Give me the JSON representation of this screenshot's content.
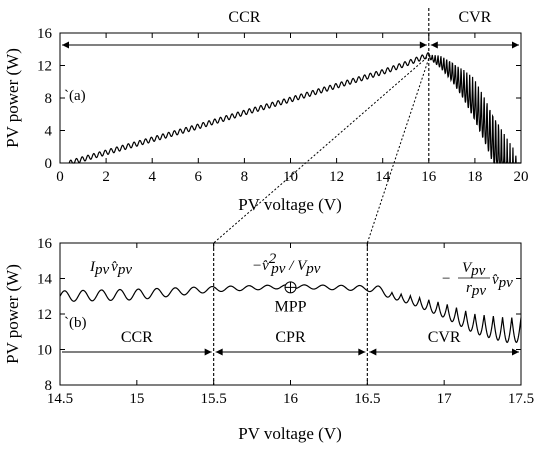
{
  "chart_data": [
    {
      "type": "line",
      "panel_label": "`(a)",
      "xlabel": "PV voltage (V)",
      "ylabel": "PV power (W)",
      "xlim": [
        0,
        20
      ],
      "ylim": [
        0,
        16
      ],
      "xticks": [
        "0",
        "2",
        "4",
        "6",
        "8",
        "10",
        "12",
        "14",
        "16",
        "18",
        "20"
      ],
      "yticks": [
        "0",
        "4",
        "8",
        "12",
        "16"
      ],
      "regions": [
        {
          "label": "CCR",
          "from": 0,
          "to": 16
        },
        {
          "label": "CVR",
          "from": 16,
          "to": 20
        }
      ],
      "boundary_x": 16,
      "series": [
        {
          "envelope_x": [
            0.4,
            2,
            4,
            6,
            8,
            10,
            12,
            14,
            15,
            16,
            16.5,
            17,
            17.5,
            18,
            18.5,
            19,
            19.5,
            19.8,
            20
          ],
          "envelope_y": [
            0,
            1.3,
            2.9,
            4.5,
            6.2,
            7.8,
            9.5,
            11.2,
            12.2,
            13.3,
            13.3,
            12.8,
            11.8,
            10.3,
            8.3,
            5.8,
            2.8,
            1.0,
            0
          ],
          "ripple_amplitude": 0.3,
          "ripple_period_v": 0.25
        }
      ],
      "grid": false
    },
    {
      "type": "line",
      "panel_label": "`(b)",
      "xlabel": "PV voltage (V)",
      "ylabel": "PV power (W)",
      "xlim": [
        14.5,
        17.5
      ],
      "ylim": [
        8,
        16
      ],
      "xticks": [
        "14.5",
        "15",
        "15.5",
        "16",
        "16.5",
        "17",
        "17.5"
      ],
      "yticks": [
        "8",
        "10",
        "12",
        "14",
        "16"
      ],
      "regions": [
        {
          "label": "CCR",
          "from": 14.5,
          "to": 15.5
        },
        {
          "label": "CPR",
          "from": 15.5,
          "to": 16.5
        },
        {
          "label": "CVR",
          "from": 16.5,
          "to": 17.5
        }
      ],
      "boundaries_x": [
        15.5,
        16.5
      ],
      "mpp": {
        "label": "MPP",
        "x": 16.0,
        "y": 13.5
      },
      "annotations": {
        "ccr": {
          "main": "I",
          "sub1": "pv",
          "main2": "v̂",
          "sub2": "pv"
        },
        "cpr": {
          "main": "−v̂",
          "sup": "2",
          "sub1": "pv",
          "mid": " / V",
          "sub2": "pv"
        },
        "cvr": {
          "prefix": "−",
          "num": "V",
          "num_sub": "pv",
          "den": "r",
          "den_sub": "pv",
          "tail": "v̂",
          "tail_sub": "pv"
        }
      },
      "series": [
        {
          "envelope_x": [
            14.5,
            15.0,
            15.5,
            16.0,
            16.5,
            16.8,
            17.0,
            17.2,
            17.4,
            17.5
          ],
          "envelope_y": [
            13.0,
            13.1,
            13.4,
            13.55,
            13.45,
            13.0,
            12.6,
            12.0,
            11.8,
            11.8
          ],
          "ripple_amplitude": [
            0.3,
            0.3,
            0.15,
            0.1,
            0.15,
            0.5,
            0.8,
            1.1,
            1.4,
            1.4
          ],
          "ripple_period_v": 0.12
        }
      ],
      "grid": false
    }
  ]
}
